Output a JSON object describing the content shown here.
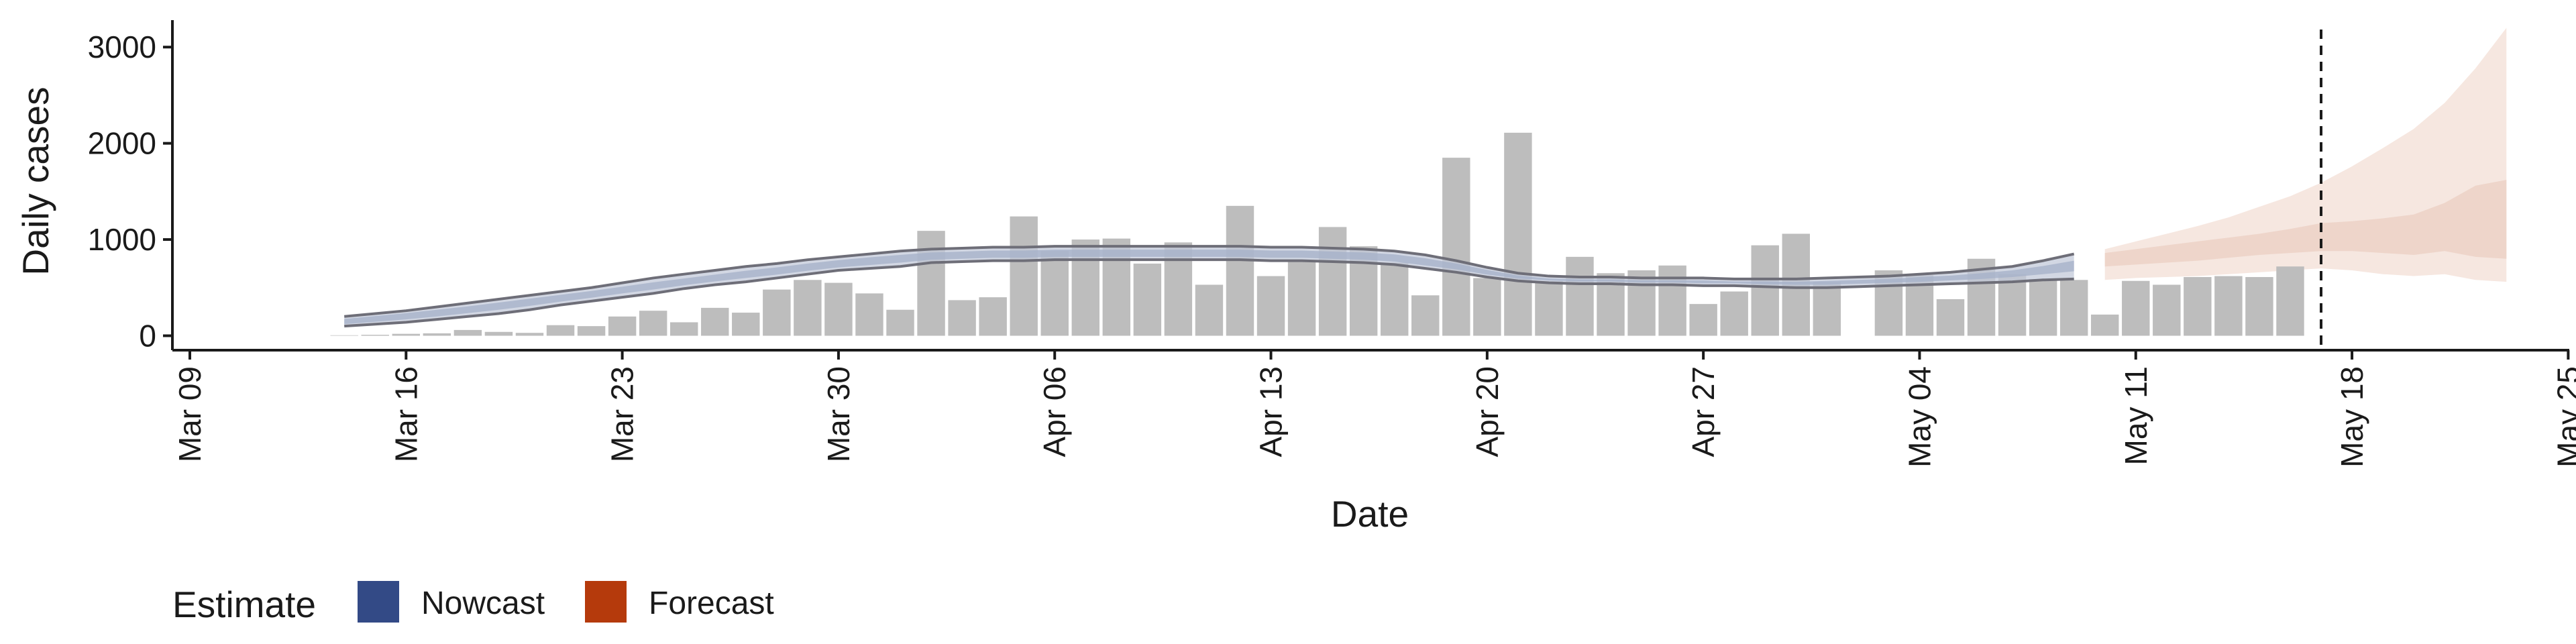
{
  "chart_data": {
    "type": "bar",
    "xlabel": "Date",
    "ylabel": "Daily cases",
    "x_range": [
      "2020-03-09",
      "2020-05-25"
    ],
    "ylim": [
      -150,
      3350
    ],
    "y_ticks": [
      0,
      1000,
      2000,
      3000
    ],
    "y_tick_labels": [
      "0",
      "1000",
      "2000",
      "3000"
    ],
    "x_ticks": [
      "2020-03-09",
      "2020-03-16",
      "2020-03-23",
      "2020-03-30",
      "2020-04-06",
      "2020-04-13",
      "2020-04-20",
      "2020-04-27",
      "2020-05-04",
      "2020-05-11",
      "2020-05-18",
      "2020-05-25"
    ],
    "x_tick_labels": [
      "Mar 09",
      "Mar 16",
      "Mar 23",
      "Mar 30",
      "Apr 06",
      "Apr 13",
      "Apr 20",
      "Apr 27",
      "May 04",
      "May 11",
      "May 18",
      "May 25"
    ],
    "reference_date": "2020-05-17",
    "bars": {
      "start_date": "2020-03-14",
      "values": [
        5,
        10,
        20,
        25,
        60,
        40,
        30,
        110,
        100,
        200,
        260,
        140,
        290,
        240,
        480,
        580,
        550,
        440,
        270,
        1090,
        370,
        400,
        1240,
        880,
        1000,
        1010,
        750,
        970,
        530,
        1350,
        620,
        780,
        1130,
        930,
        760,
        420,
        1850,
        600,
        2110,
        570,
        820,
        650,
        680,
        730,
        330,
        460,
        940,
        1060,
        560,
        0,
        680,
        630,
        380,
        800,
        640,
        590,
        580,
        220,
        570,
        530,
        610,
        620,
        610,
        720
      ]
    },
    "nowcast": {
      "start_date": "2020-03-14",
      "end_date": "2020-05-09",
      "outer_lower": [
        100,
        120,
        140,
        170,
        200,
        230,
        270,
        320,
        360,
        400,
        440,
        490,
        530,
        560,
        600,
        640,
        680,
        700,
        720,
        760,
        770,
        780,
        780,
        790,
        790,
        790,
        790,
        790,
        790,
        790,
        780,
        780,
        770,
        760,
        740,
        700,
        660,
        610,
        570,
        550,
        540,
        540,
        530,
        530,
        520,
        520,
        510,
        500,
        500,
        510,
        520,
        530,
        540,
        550,
        560,
        580,
        590
      ],
      "outer_upper": [
        200,
        230,
        260,
        300,
        340,
        380,
        420,
        460,
        500,
        550,
        600,
        640,
        680,
        720,
        750,
        790,
        820,
        850,
        880,
        900,
        910,
        920,
        920,
        930,
        930,
        930,
        930,
        930,
        930,
        930,
        920,
        920,
        910,
        900,
        880,
        840,
        780,
        710,
        650,
        620,
        610,
        610,
        600,
        600,
        600,
        590,
        590,
        590,
        600,
        610,
        620,
        640,
        660,
        690,
        720,
        780,
        850
      ],
      "inner_lower": [
        120,
        145,
        170,
        200,
        235,
        270,
        310,
        355,
        395,
        440,
        480,
        525,
        565,
        600,
        635,
        675,
        710,
        735,
        760,
        790,
        800,
        810,
        810,
        820,
        820,
        820,
        820,
        820,
        820,
        820,
        810,
        810,
        800,
        790,
        770,
        730,
        690,
        635,
        595,
        575,
        565,
        565,
        555,
        555,
        545,
        545,
        535,
        530,
        530,
        540,
        550,
        560,
        575,
        590,
        610,
        640,
        670
      ],
      "inner_upper": [
        175,
        205,
        235,
        270,
        305,
        345,
        385,
        425,
        465,
        510,
        555,
        595,
        635,
        675,
        710,
        750,
        785,
        815,
        840,
        865,
        875,
        885,
        885,
        895,
        895,
        895,
        895,
        895,
        895,
        895,
        885,
        885,
        875,
        865,
        845,
        805,
        750,
        685,
        625,
        595,
        585,
        585,
        575,
        575,
        575,
        565,
        565,
        560,
        570,
        580,
        590,
        610,
        625,
        650,
        680,
        725,
        780
      ]
    },
    "forecast": {
      "start_date": "2020-05-10",
      "end_date": "2020-05-23",
      "outer_lower": [
        580,
        600,
        610,
        620,
        640,
        660,
        680,
        700,
        680,
        640,
        620,
        640,
        580,
        560
      ],
      "outer_upper": [
        900,
        980,
        1060,
        1140,
        1230,
        1340,
        1450,
        1590,
        1760,
        1950,
        2150,
        2420,
        2780,
        3200
      ],
      "inner_lower": [
        720,
        740,
        760,
        780,
        810,
        840,
        860,
        880,
        880,
        860,
        840,
        880,
        820,
        800
      ],
      "inner_upper": [
        860,
        900,
        940,
        980,
        1020,
        1060,
        1110,
        1170,
        1190,
        1220,
        1260,
        1380,
        1560,
        1620
      ]
    },
    "legend": {
      "title": "Estimate",
      "items": [
        {
          "name": "Nowcast",
          "color": "#334a86"
        },
        {
          "name": "Forecast",
          "color": "#b53a0c"
        }
      ],
      "placement": "bottom-left"
    },
    "colors": {
      "bars": "#bdbdbd",
      "nowcast_outer": "#c3cad9",
      "nowcast_inner": "#a4b0c8",
      "nowcast_line": "#6e6e78",
      "forecast_outer": "#f6e7e0",
      "forecast_inner": "#ecd1c5",
      "axis": "#1a1a1a",
      "reference_line": "#1a1a1a"
    },
    "grid": false
  }
}
